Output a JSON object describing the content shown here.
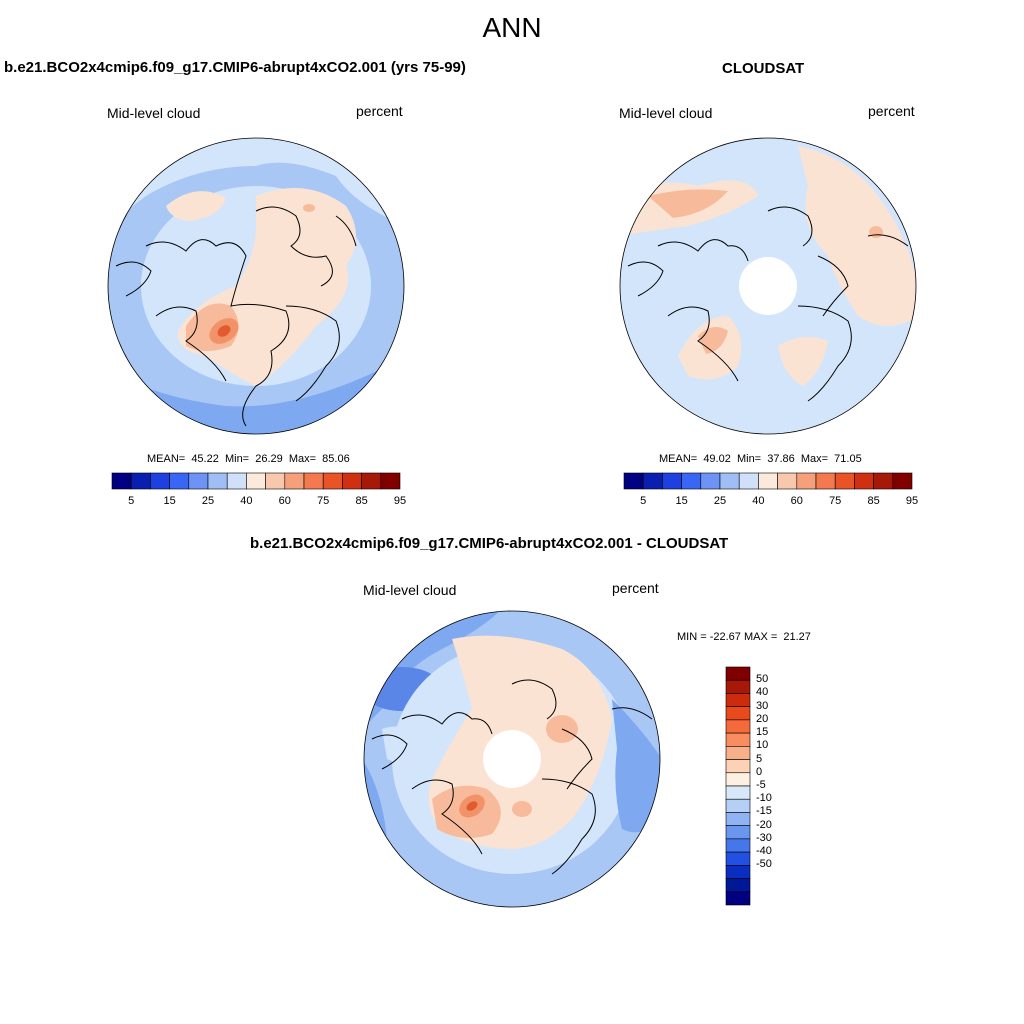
{
  "figure": {
    "title": "ANN",
    "top_left": {
      "title": "b.e21.BCO2x4cmip6.f09_g17.CMIP6-abrupt4xCO2.001 (yrs 75-99)",
      "left_label": "Mid-level cloud",
      "right_label": "percent",
      "stats": "MEAN=  45.22  Min=  26.29  Max=  85.06",
      "has_polar_hole": false
    },
    "top_right": {
      "title": "CLOUDSAT",
      "left_label": "Mid-level cloud",
      "right_label": "percent",
      "stats": "MEAN=  49.02  Min=  37.86  Max=  71.05",
      "has_polar_hole": true
    },
    "bottom": {
      "title": "b.e21.BCO2x4cmip6.f09_g17.CMIP6-abrupt4xCO2.001 - CLOUDSAT",
      "left_label": "Mid-level cloud",
      "right_label": "percent",
      "stats": "MIN = -22.67 MAX =  21.27",
      "has_polar_hole": true
    }
  },
  "colorbars": {
    "horizontal": {
      "colors": [
        "#000080",
        "#0a1fb0",
        "#1e40e0",
        "#3a66f5",
        "#6c93f5",
        "#a0bef5",
        "#cfe0f8",
        "#fbe9dc",
        "#f8c8ad",
        "#f5a07a",
        "#f27a4e",
        "#ea5228",
        "#d03010",
        "#a81808",
        "#800000"
      ],
      "tick_labels": [
        "5",
        "15",
        "25",
        "40",
        "60",
        "75",
        "85",
        "95"
      ],
      "tick_positions": [
        1,
        3,
        5,
        7,
        9,
        11,
        13,
        15
      ]
    },
    "vertical": {
      "colors": [
        "#800000",
        "#a81808",
        "#cc2c0c",
        "#e84a1c",
        "#f46a3a",
        "#f88e60",
        "#f8b08a",
        "#fbd2b6",
        "#fdf0e2",
        "#d8e7fa",
        "#b5cff5",
        "#90b4f3",
        "#6a96f0",
        "#4676ec",
        "#2250e2",
        "#0a2ec0",
        "#001898",
        "#000080"
      ],
      "tick_labels": [
        "50",
        "40",
        "30",
        "20",
        "15",
        "10",
        "5",
        "0",
        "-5",
        "-10",
        "-15",
        "-20",
        "-30",
        "-40",
        "-50"
      ]
    }
  },
  "map_colors": {
    "light_blue": "#d3e5fb",
    "mid_blue": "#a9c7f5",
    "blue": "#7ea8f0",
    "deep_blue": "#5a86e8",
    "peach": "#fbe3d3",
    "salmon": "#f7bb9b",
    "orange": "#f19268",
    "red": "#e45a30",
    "deep_red": "#cc2f12"
  }
}
